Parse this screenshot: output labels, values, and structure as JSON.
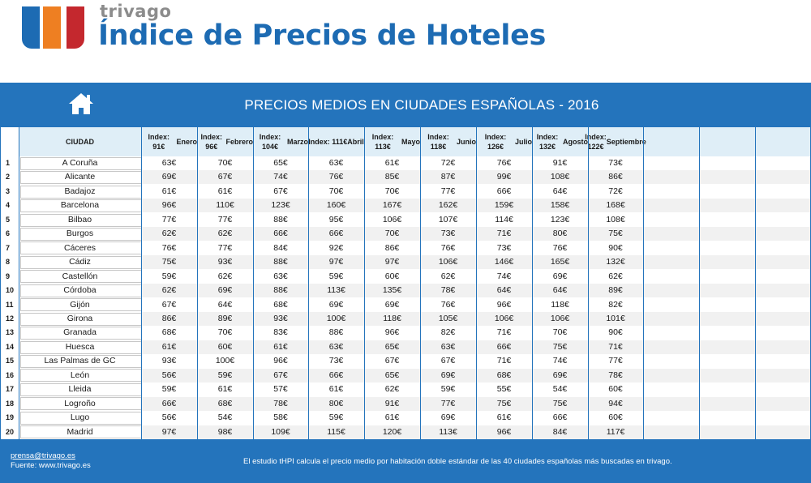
{
  "brand": "trivago",
  "title": "Índice de Precios de Hoteles",
  "colors": {
    "accent": "#2474bc",
    "logo": [
      "#1d6bb3",
      "#ee7f22",
      "#c4282e"
    ]
  },
  "banner": {
    "icon": "home-icon",
    "title": "PRECIOS MEDIOS EN CIUDADES ESPAÑOLAS - 2016"
  },
  "table": {
    "city_header": "CIUDAD",
    "months": [
      {
        "index": "Index: 91€",
        "name": "Enero"
      },
      {
        "index": "Index: 96€",
        "name": "Febrero"
      },
      {
        "index": "Index: 104€",
        "name": "Marzo"
      },
      {
        "index": "Index: 111€",
        "name": "Abril"
      },
      {
        "index": "Index: 113€",
        "name": "Mayo"
      },
      {
        "index": "Index: 118€",
        "name": "Junio"
      },
      {
        "index": "Index: 126€",
        "name": "Julio"
      },
      {
        "index": "Index: 132€",
        "name": "Agosto"
      },
      {
        "index": "Index: 122€",
        "name": "Septiembre"
      }
    ],
    "rows": [
      {
        "num": "1",
        "city": "A Coruña",
        "prices": [
          "63€",
          "70€",
          "65€",
          "63€",
          "61€",
          "72€",
          "76€",
          "91€",
          "73€"
        ]
      },
      {
        "num": "2",
        "city": "Alicante",
        "prices": [
          "69€",
          "67€",
          "74€",
          "76€",
          "85€",
          "87€",
          "99€",
          "108€",
          "86€"
        ]
      },
      {
        "num": "3",
        "city": "Badajoz",
        "prices": [
          "61€",
          "61€",
          "67€",
          "70€",
          "70€",
          "77€",
          "66€",
          "64€",
          "72€"
        ]
      },
      {
        "num": "4",
        "city": "Barcelona",
        "prices": [
          "96€",
          "110€",
          "123€",
          "160€",
          "167€",
          "162€",
          "159€",
          "158€",
          "168€"
        ]
      },
      {
        "num": "5",
        "city": "Bilbao",
        "prices": [
          "77€",
          "77€",
          "88€",
          "95€",
          "106€",
          "107€",
          "114€",
          "123€",
          "108€"
        ]
      },
      {
        "num": "6",
        "city": "Burgos",
        "prices": [
          "62€",
          "62€",
          "66€",
          "66€",
          "70€",
          "73€",
          "71€",
          "80€",
          "75€"
        ]
      },
      {
        "num": "7",
        "city": "Cáceres",
        "prices": [
          "76€",
          "77€",
          "84€",
          "92€",
          "86€",
          "76€",
          "73€",
          "76€",
          "90€"
        ]
      },
      {
        "num": "8",
        "city": "Cádiz",
        "prices": [
          "75€",
          "93€",
          "88€",
          "97€",
          "97€",
          "106€",
          "146€",
          "165€",
          "132€"
        ]
      },
      {
        "num": "9",
        "city": "Castellón",
        "prices": [
          "59€",
          "62€",
          "63€",
          "59€",
          "60€",
          "62€",
          "74€",
          "69€",
          "62€"
        ]
      },
      {
        "num": "10",
        "city": "Córdoba",
        "prices": [
          "62€",
          "69€",
          "88€",
          "113€",
          "135€",
          "78€",
          "64€",
          "64€",
          "89€"
        ]
      },
      {
        "num": "11",
        "city": "Gijón",
        "prices": [
          "67€",
          "64€",
          "68€",
          "69€",
          "69€",
          "76€",
          "96€",
          "118€",
          "82€"
        ]
      },
      {
        "num": "12",
        "city": "Girona",
        "prices": [
          "86€",
          "89€",
          "93€",
          "100€",
          "118€",
          "105€",
          "106€",
          "106€",
          "101€"
        ]
      },
      {
        "num": "13",
        "city": "Granada",
        "prices": [
          "68€",
          "70€",
          "83€",
          "88€",
          "96€",
          "82€",
          "71€",
          "70€",
          "90€"
        ]
      },
      {
        "num": "14",
        "city": "Huesca",
        "prices": [
          "61€",
          "60€",
          "61€",
          "63€",
          "65€",
          "63€",
          "66€",
          "75€",
          "71€"
        ]
      },
      {
        "num": "15",
        "city": "Las Palmas de GC",
        "prices": [
          "93€",
          "100€",
          "96€",
          "73€",
          "67€",
          "67€",
          "71€",
          "74€",
          "77€"
        ]
      },
      {
        "num": "16",
        "city": "León",
        "prices": [
          "56€",
          "59€",
          "67€",
          "66€",
          "65€",
          "69€",
          "68€",
          "69€",
          "78€"
        ]
      },
      {
        "num": "17",
        "city": "Lleida",
        "prices": [
          "59€",
          "61€",
          "57€",
          "61€",
          "62€",
          "59€",
          "55€",
          "54€",
          "60€"
        ]
      },
      {
        "num": "18",
        "city": "Logroño",
        "prices": [
          "66€",
          "68€",
          "78€",
          "80€",
          "91€",
          "77€",
          "75€",
          "75€",
          "94€"
        ]
      },
      {
        "num": "19",
        "city": "Lugo",
        "prices": [
          "56€",
          "54€",
          "58€",
          "59€",
          "61€",
          "69€",
          "61€",
          "66€",
          "60€"
        ]
      },
      {
        "num": "20",
        "city": "Madrid",
        "prices": [
          "97€",
          "98€",
          "109€",
          "115€",
          "120€",
          "113€",
          "96€",
          "84€",
          "117€"
        ]
      }
    ]
  },
  "footer": {
    "email": "prensa@trivago.es",
    "source": "Fuente: www.trivago.es",
    "note": "El estudio tHPI calcula el precio medio por habitación doble estándar de las 40 ciudades españolas más buscadas en trivago."
  }
}
